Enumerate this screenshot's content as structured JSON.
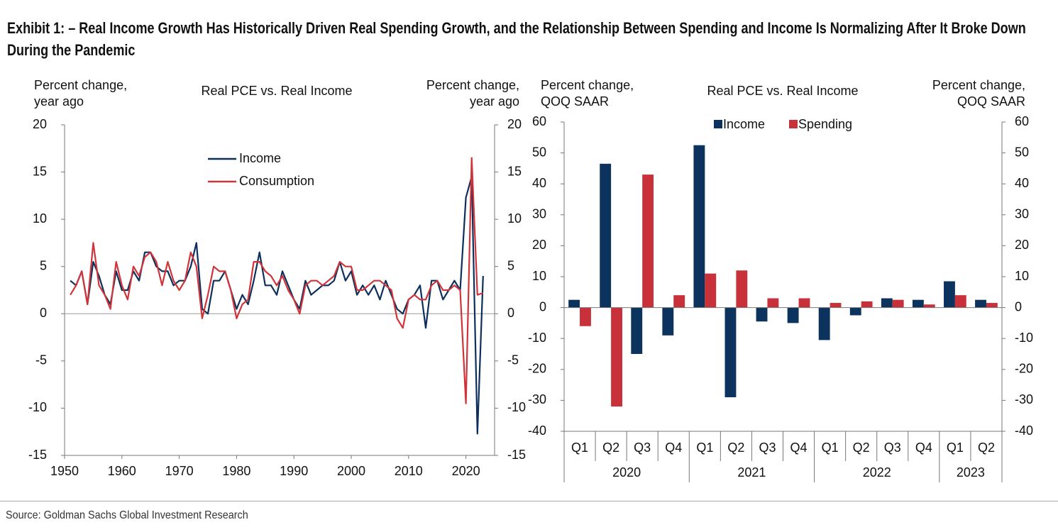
{
  "title": "Exhibit 1: – Real Income Growth Has Historically Driven Real Spending Growth, and the Relationship Between Spending and Income Is Normalizing After It Broke Down During the Pandemic",
  "source": "Source: Goldman Sachs Global Investment Research",
  "chart_data": [
    {
      "type": "line",
      "title": "Real PCE vs. Real Income",
      "y_label": [
        "Percent change,",
        "year ago"
      ],
      "y2_label": [
        "Percent change,",
        "year ago"
      ],
      "x": [
        1951,
        1952,
        1953,
        1954,
        1955,
        1956,
        1957,
        1958,
        1959,
        1960,
        1961,
        1962,
        1963,
        1964,
        1965,
        1966,
        1967,
        1968,
        1969,
        1970,
        1971,
        1972,
        1973,
        1974,
        1975,
        1976,
        1977,
        1978,
        1979,
        1980,
        1981,
        1982,
        1983,
        1984,
        1985,
        1986,
        1987,
        1988,
        1989,
        1990,
        1991,
        1992,
        1993,
        1994,
        1995,
        1996,
        1997,
        1998,
        1999,
        2000,
        2001,
        2002,
        2003,
        2004,
        2005,
        2006,
        2007,
        2008,
        2009,
        2010,
        2011,
        2012,
        2013,
        2014,
        2015,
        2016,
        2017,
        2018,
        2019,
        2020,
        2021,
        2022,
        2023
      ],
      "series": [
        {
          "name": "Income",
          "color": "#0c2f5c",
          "values": [
            3.5,
            3,
            4.5,
            1,
            5.5,
            4,
            2,
            1,
            4.5,
            2.5,
            2.5,
            4.5,
            3.5,
            6.5,
            6.5,
            5,
            4.5,
            4.5,
            3,
            3.5,
            3.5,
            5,
            7.5,
            0.5,
            0,
            3.5,
            3.5,
            4.5,
            2.5,
            0.5,
            2,
            1,
            3.5,
            6.5,
            3,
            3,
            2,
            4.5,
            3,
            1.5,
            0.5,
            3.5,
            2,
            2.5,
            3,
            3,
            3.5,
            5.5,
            3.5,
            4.5,
            2,
            3,
            2,
            3,
            1.5,
            3.5,
            2,
            0.5,
            0,
            1.5,
            2,
            3,
            -1.5,
            3.5,
            3.5,
            1.5,
            2.5,
            3.5,
            2.5,
            12.3,
            14.5,
            -12.7,
            4
          ]
        },
        {
          "name": "Consumption",
          "color": "#d0343a",
          "values": [
            2,
            3,
            4.5,
            1,
            7.5,
            3,
            2,
            0.5,
            5.5,
            3,
            1.5,
            5,
            4,
            6,
            6.5,
            5.5,
            3,
            5.5,
            3.5,
            2.5,
            3.5,
            6.5,
            5,
            -0.5,
            2,
            5,
            4.5,
            4.5,
            2.5,
            -0.5,
            1,
            1.5,
            5.5,
            5.5,
            4.5,
            4,
            3,
            4,
            2.5,
            1.5,
            0,
            3,
            3.5,
            3.5,
            3,
            3.5,
            4,
            5.5,
            5,
            5,
            2.5,
            2.5,
            3,
            3.5,
            3.5,
            3,
            2.5,
            -0.5,
            -1.5,
            1.5,
            2,
            1.5,
            1.5,
            3,
            3.5,
            2.5,
            2.5,
            3,
            2.5,
            -9.5,
            16.5,
            2,
            2.2
          ]
        }
      ],
      "xlim": [
        1950,
        2025
      ],
      "xticks": [
        1950,
        1960,
        1970,
        1980,
        1990,
        2000,
        2010,
        2020
      ],
      "ylim": [
        -15,
        20
      ],
      "yticks": [
        -15,
        -10,
        -5,
        0,
        5,
        10,
        15,
        20
      ],
      "y2lim": [
        -15,
        20
      ],
      "y2ticks": [
        -15,
        -10,
        -5,
        0,
        5,
        10,
        15,
        20
      ],
      "legend": "upper-left"
    },
    {
      "type": "bar",
      "title": "Real PCE vs. Real Income",
      "y_label": [
        "Percent change,",
        "QOQ SAAR"
      ],
      "y2_label": [
        "Percent change,",
        "QOQ SAAR"
      ],
      "category_groups": [
        {
          "name": "2020",
          "categories": [
            "Q1",
            "Q2",
            "Q3",
            "Q4"
          ]
        },
        {
          "name": "2021",
          "categories": [
            "Q1",
            "Q2",
            "Q3",
            "Q4"
          ]
        },
        {
          "name": "2022",
          "categories": [
            "Q1",
            "Q2",
            "Q3",
            "Q4"
          ]
        },
        {
          "name": "2023",
          "categories": [
            "Q1",
            "Q2"
          ]
        }
      ],
      "series": [
        {
          "name": "Income",
          "color": "#0c335e",
          "values": [
            2.5,
            46.5,
            -15,
            -9,
            52.5,
            -29,
            -4.5,
            -5,
            -10.5,
            -2.5,
            3,
            2.5,
            8.5,
            2.5
          ]
        },
        {
          "name": "Spending",
          "color": "#c8313a",
          "values": [
            -6,
            -32,
            43,
            4,
            11,
            12,
            3,
            3,
            1.5,
            2,
            2.5,
            1,
            4,
            1.5
          ]
        }
      ],
      "ylim": [
        -40,
        60
      ],
      "yticks": [
        -40,
        -30,
        -20,
        -10,
        0,
        10,
        20,
        30,
        40,
        50,
        60
      ],
      "y2lim": [
        -40,
        60
      ],
      "y2ticks": [
        -40,
        -30,
        -20,
        -10,
        0,
        10,
        20,
        30,
        40,
        50,
        60
      ],
      "legend": "upper-center"
    }
  ]
}
